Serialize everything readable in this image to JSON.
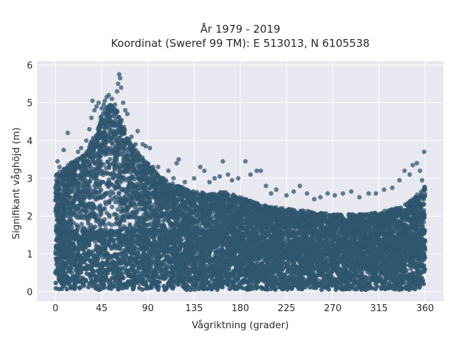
{
  "chart_data": {
    "type": "scatter",
    "title_line1": "År 1979 - 2019",
    "title_line2": "Koordinat (Sweref 99 TM): E 513013, N 6105538",
    "xlabel": "Vågriktning (grader)",
    "ylabel": "Signifikant våghöjd (m)",
    "xlim": [
      -18,
      378
    ],
    "ylim": [
      -0.25,
      6.1
    ],
    "xticks": [
      0,
      45,
      90,
      135,
      180,
      225,
      270,
      315,
      360
    ],
    "yticks": [
      0,
      1,
      2,
      3,
      4,
      5,
      6
    ],
    "grid": true,
    "background": "#e8e8f0",
    "marker_color": "#30566f",
    "upper_envelope": [
      [
        0,
        3.1
      ],
      [
        10,
        3.3
      ],
      [
        20,
        3.5
      ],
      [
        30,
        3.7
      ],
      [
        40,
        4.3
      ],
      [
        45,
        4.7
      ],
      [
        50,
        4.9
      ],
      [
        55,
        5.0
      ],
      [
        60,
        4.8
      ],
      [
        65,
        4.5
      ],
      [
        70,
        4.1
      ],
      [
        80,
        3.7
      ],
      [
        90,
        3.4
      ],
      [
        100,
        3.1
      ],
      [
        110,
        2.9
      ],
      [
        120,
        2.8
      ],
      [
        135,
        2.65
      ],
      [
        150,
        2.6
      ],
      [
        165,
        2.65
      ],
      [
        180,
        2.5
      ],
      [
        195,
        2.35
      ],
      [
        210,
        2.25
      ],
      [
        225,
        2.2
      ],
      [
        240,
        2.15
      ],
      [
        255,
        2.1
      ],
      [
        270,
        2.05
      ],
      [
        285,
        2.05
      ],
      [
        300,
        2.05
      ],
      [
        315,
        2.1
      ],
      [
        330,
        2.2
      ],
      [
        340,
        2.3
      ],
      [
        350,
        2.5
      ],
      [
        360,
        2.8
      ]
    ],
    "outliers": [
      [
        2,
        3.45
      ],
      [
        4,
        3.3
      ],
      [
        8,
        3.75
      ],
      [
        12,
        4.2
      ],
      [
        15,
        3.4
      ],
      [
        22,
        3.7
      ],
      [
        25,
        3.8
      ],
      [
        30,
        4.0
      ],
      [
        33,
        4.3
      ],
      [
        35,
        4.6
      ],
      [
        36,
        5.05
      ],
      [
        38,
        4.8
      ],
      [
        40,
        4.9
      ],
      [
        42,
        5.0
      ],
      [
        45,
        4.85
      ],
      [
        47,
        4.95
      ],
      [
        48,
        5.05
      ],
      [
        50,
        5.15
      ],
      [
        51,
        4.8
      ],
      [
        52,
        5.2
      ],
      [
        53,
        4.6
      ],
      [
        55,
        5.1
      ],
      [
        56,
        4.9
      ],
      [
        58,
        4.95
      ],
      [
        60,
        5.3
      ],
      [
        61,
        5.5
      ],
      [
        62,
        5.75
      ],
      [
        63,
        5.65
      ],
      [
        64,
        5.4
      ],
      [
        66,
        5.0
      ],
      [
        68,
        4.8
      ],
      [
        70,
        4.7
      ],
      [
        74,
        4.1
      ],
      [
        78,
        3.9
      ],
      [
        80,
        4.25
      ],
      [
        85,
        3.9
      ],
      [
        88,
        3.85
      ],
      [
        92,
        3.8
      ],
      [
        95,
        3.3
      ],
      [
        100,
        3.3
      ],
      [
        105,
        3.0
      ],
      [
        110,
        3.2
      ],
      [
        115,
        3.0
      ],
      [
        118,
        3.4
      ],
      [
        120,
        3.5
      ],
      [
        126,
        2.9
      ],
      [
        135,
        3.0
      ],
      [
        141,
        3.3
      ],
      [
        145,
        3.2
      ],
      [
        150,
        2.9
      ],
      [
        155,
        3.0
      ],
      [
        160,
        3.05
      ],
      [
        163,
        3.45
      ],
      [
        168,
        3.1
      ],
      [
        172,
        2.95
      ],
      [
        178,
        3.0
      ],
      [
        185,
        3.45
      ],
      [
        190,
        3.1
      ],
      [
        196,
        3.2
      ],
      [
        200,
        3.2
      ],
      [
        205,
        2.8
      ],
      [
        210,
        2.6
      ],
      [
        215,
        2.7
      ],
      [
        225,
        2.55
      ],
      [
        232,
        2.65
      ],
      [
        238,
        2.8
      ],
      [
        245,
        2.6
      ],
      [
        252,
        2.45
      ],
      [
        258,
        2.5
      ],
      [
        265,
        2.6
      ],
      [
        272,
        2.55
      ],
      [
        280,
        2.6
      ],
      [
        288,
        2.65
      ],
      [
        296,
        2.5
      ],
      [
        305,
        2.6
      ],
      [
        312,
        2.6
      ],
      [
        320,
        2.7
      ],
      [
        328,
        2.75
      ],
      [
        335,
        2.95
      ],
      [
        340,
        3.2
      ],
      [
        345,
        3.1
      ],
      [
        348,
        3.35
      ],
      [
        352,
        3.4
      ],
      [
        355,
        3.2
      ],
      [
        357,
        2.95
      ],
      [
        359,
        3.7
      ]
    ]
  }
}
